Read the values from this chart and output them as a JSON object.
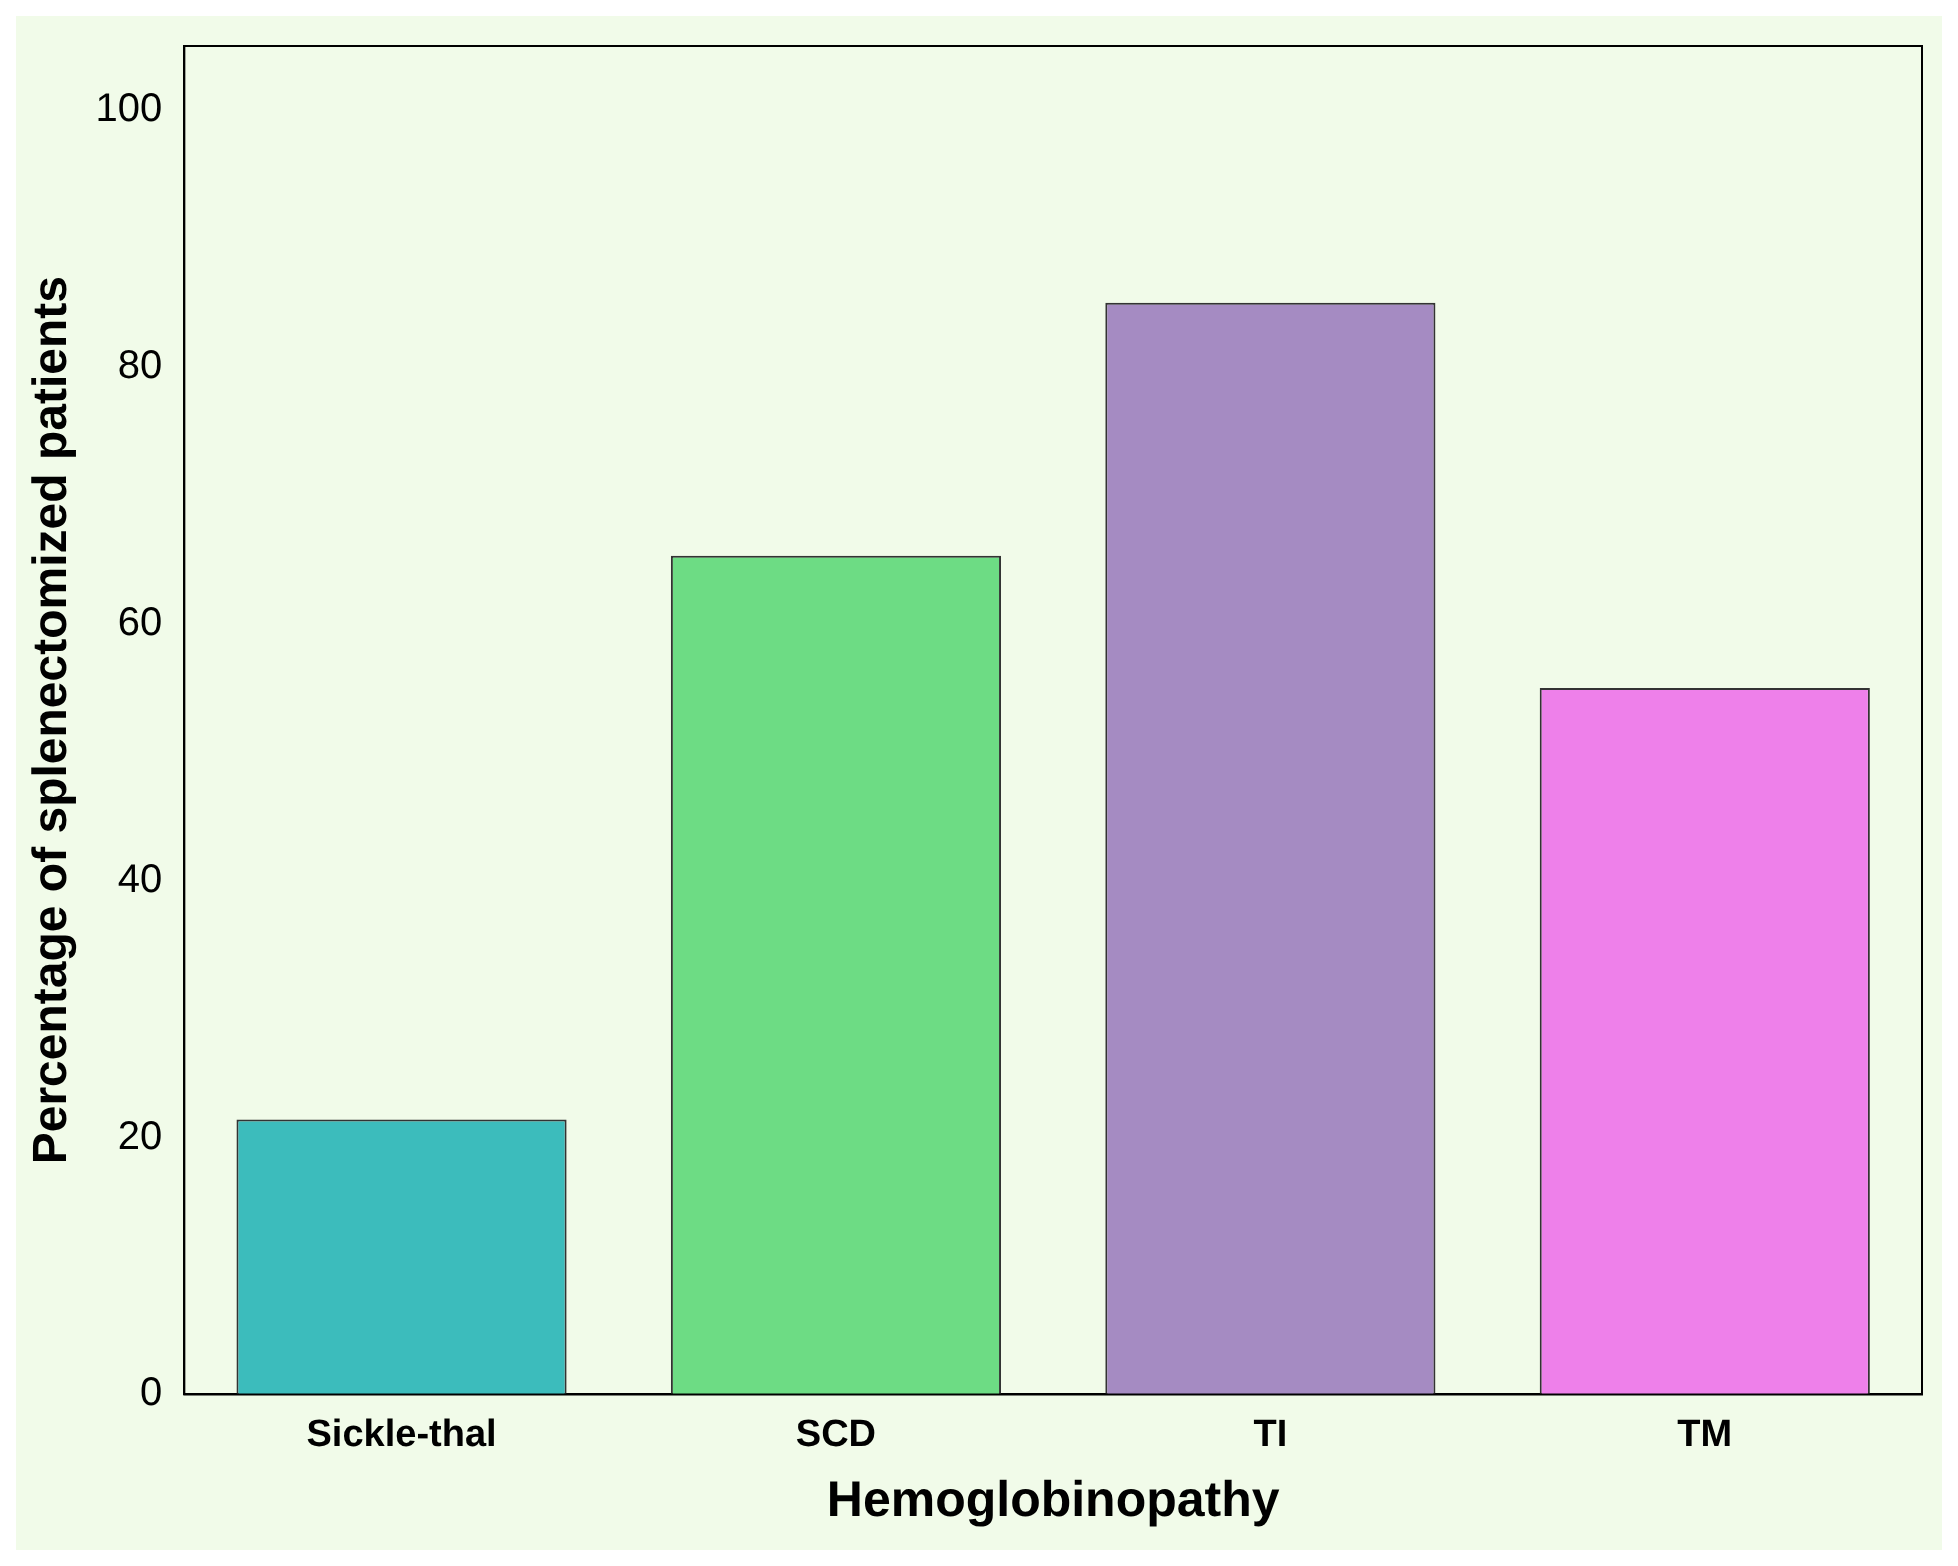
{
  "chart_data": {
    "type": "bar",
    "xlabel": "Hemoglobinopathy",
    "ylabel": "Percentage of splenectomized patients",
    "categories": [
      "Sickle-thal",
      "SCD",
      "TI",
      "TM"
    ],
    "values": [
      21.4,
      65.3,
      85,
      55
    ],
    "colors": [
      "#3cbcbc",
      "#6ddc84",
      "#a58bc2",
      "#ee80ea"
    ],
    "ylim": [
      0,
      105
    ],
    "yticks": [
      0,
      20,
      40,
      60,
      80,
      100
    ],
    "grid": false,
    "legend": false
  }
}
